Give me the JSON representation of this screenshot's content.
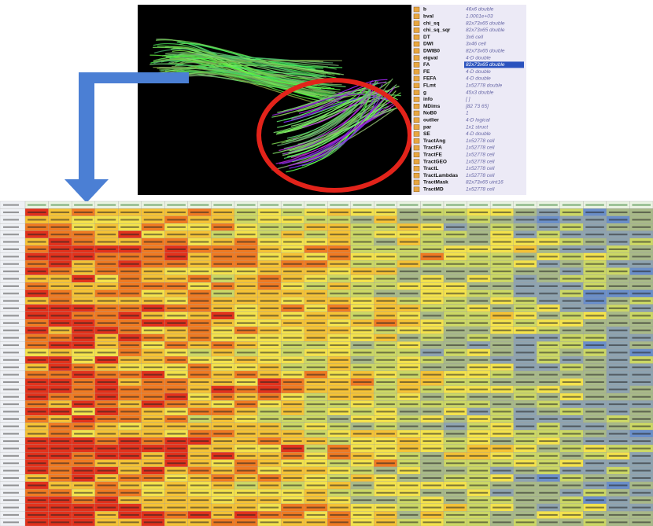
{
  "workspace": {
    "variables": [
      {
        "name": "b",
        "value": "46x6 double"
      },
      {
        "name": "bval",
        "value": "1.0001e+03"
      },
      {
        "name": "chi_sq",
        "value": "82x73x65 double"
      },
      {
        "name": "chi_sq_sqr",
        "value": "82x73x65 double"
      },
      {
        "name": "DT",
        "value": "3x6 cell"
      },
      {
        "name": "DWI",
        "value": "3x46 cell"
      },
      {
        "name": "DWIB0",
        "value": "82x73x65 double"
      },
      {
        "name": "eigval",
        "value": "4-D double"
      },
      {
        "name": "FA",
        "value": "82x73x65 double"
      },
      {
        "name": "FE",
        "value": "4-D double"
      },
      {
        "name": "FEFA",
        "value": "4-D double"
      },
      {
        "name": "FLmt",
        "value": "1x52778 double"
      },
      {
        "name": "g",
        "value": "45x3 double"
      },
      {
        "name": "info",
        "value": "[ ]"
      },
      {
        "name": "MDims",
        "value": "[82 73 65]"
      },
      {
        "name": "NoB0",
        "value": "1"
      },
      {
        "name": "outlier",
        "value": "4-D logical"
      },
      {
        "name": "par",
        "value": "1x1 struct"
      },
      {
        "name": "SE",
        "value": "4-D double"
      },
      {
        "name": "TractAng",
        "value": "1x52778 cell"
      },
      {
        "name": "TractFA",
        "value": "1x52778 cell"
      },
      {
        "name": "TractFE",
        "value": "1x52778 cell"
      },
      {
        "name": "TractGEO",
        "value": "1x52778 cell"
      },
      {
        "name": "TractL",
        "value": "1x52778 cell"
      },
      {
        "name": "TractLambdas",
        "value": "1x52778 cell"
      },
      {
        "name": "TractMask",
        "value": "82x73x65 uint16"
      },
      {
        "name": "TractMD",
        "value": "1x52778 cell"
      }
    ]
  }
}
